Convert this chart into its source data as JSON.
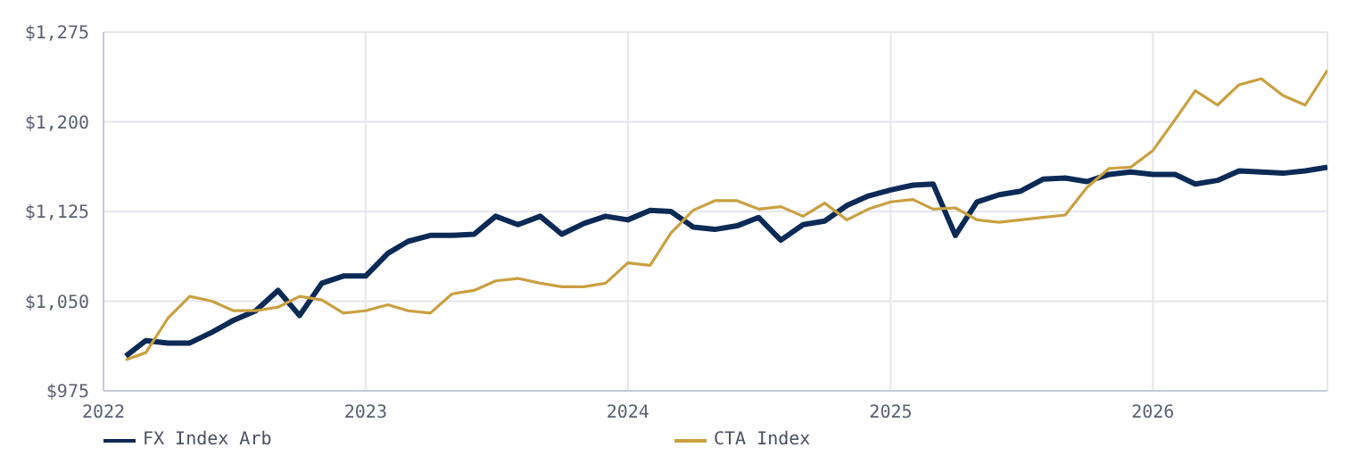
{
  "chart_data": {
    "type": "line",
    "x": [
      "2022-02",
      "2022-03",
      "2022-04",
      "2022-05",
      "2022-06",
      "2022-07",
      "2022-08",
      "2022-09",
      "2022-10",
      "2022-11",
      "2022-12",
      "2023-01",
      "2023-02",
      "2023-03",
      "2023-04",
      "2023-05",
      "2023-06",
      "2023-07",
      "2023-08",
      "2023-09",
      "2023-10",
      "2023-11",
      "2023-12",
      "2024-01",
      "2024-02",
      "2024-03",
      "2024-04",
      "2024-05",
      "2024-06",
      "2024-07",
      "2024-08",
      "2024-09",
      "2024-10",
      "2024-11",
      "2024-12",
      "2025-01",
      "2025-02",
      "2025-03",
      "2025-04",
      "2025-05",
      "2025-06",
      "2025-07",
      "2025-08",
      "2025-09",
      "2025-10",
      "2025-11",
      "2025-12",
      "2026-01",
      "2026-02",
      "2026-03",
      "2026-04",
      "2026-05",
      "2026-06",
      "2026-07",
      "2026-08",
      "2026-09"
    ],
    "series": [
      {
        "name": "FX Index Arb",
        "color": "#0b2a55",
        "values": [
          1004,
          1017,
          1015,
          1015,
          1024,
          1034,
          1042,
          1059,
          1038,
          1065,
          1071,
          1071,
          1090,
          1100,
          1105,
          1105,
          1106,
          1121,
          1114,
          1121,
          1106,
          1115,
          1121,
          1118,
          1126,
          1125,
          1112,
          1110,
          1113,
          1120,
          1101,
          1114,
          1117,
          1130,
          1138,
          1143,
          1147,
          1148,
          1105,
          1133,
          1139,
          1142,
          1152,
          1153,
          1150,
          1156,
          1158,
          1156,
          1156,
          1148,
          1151,
          1159,
          1158,
          1157,
          1159,
          1162
        ]
      },
      {
        "name": "CTA Index",
        "color": "#c9a040",
        "values": [
          1001,
          1007,
          1036,
          1054,
          1050,
          1042,
          1042,
          1045,
          1054,
          1051,
          1040,
          1042,
          1047,
          1042,
          1040,
          1056,
          1059,
          1067,
          1069,
          1065,
          1062,
          1062,
          1065,
          1082,
          1080,
          1107,
          1126,
          1134,
          1134,
          1127,
          1129,
          1121,
          1132,
          1118,
          1127,
          1133,
          1135,
          1127,
          1128,
          1118,
          1116,
          1118,
          1120,
          1122,
          1145,
          1161,
          1162,
          1176,
          1202,
          1226,
          1214,
          1231,
          1236,
          1222,
          1214,
          1243
        ]
      }
    ],
    "xlim": [
      "2022",
      "2026-09"
    ],
    "xticks": [
      "2022",
      "2023",
      "2024",
      "2025",
      "2026"
    ],
    "ylim": [
      975,
      1275
    ],
    "yticks": [
      {
        "value": 975,
        "label": "$975"
      },
      {
        "value": 1050,
        "label": "$1,050"
      },
      {
        "value": 1125,
        "label": "$1,125"
      },
      {
        "value": 1200,
        "label": "$1,200"
      },
      {
        "value": 1275,
        "label": "$1,275"
      }
    ],
    "grid": true,
    "legend": "bottom left",
    "marker": "none",
    "line_style": "solid"
  }
}
